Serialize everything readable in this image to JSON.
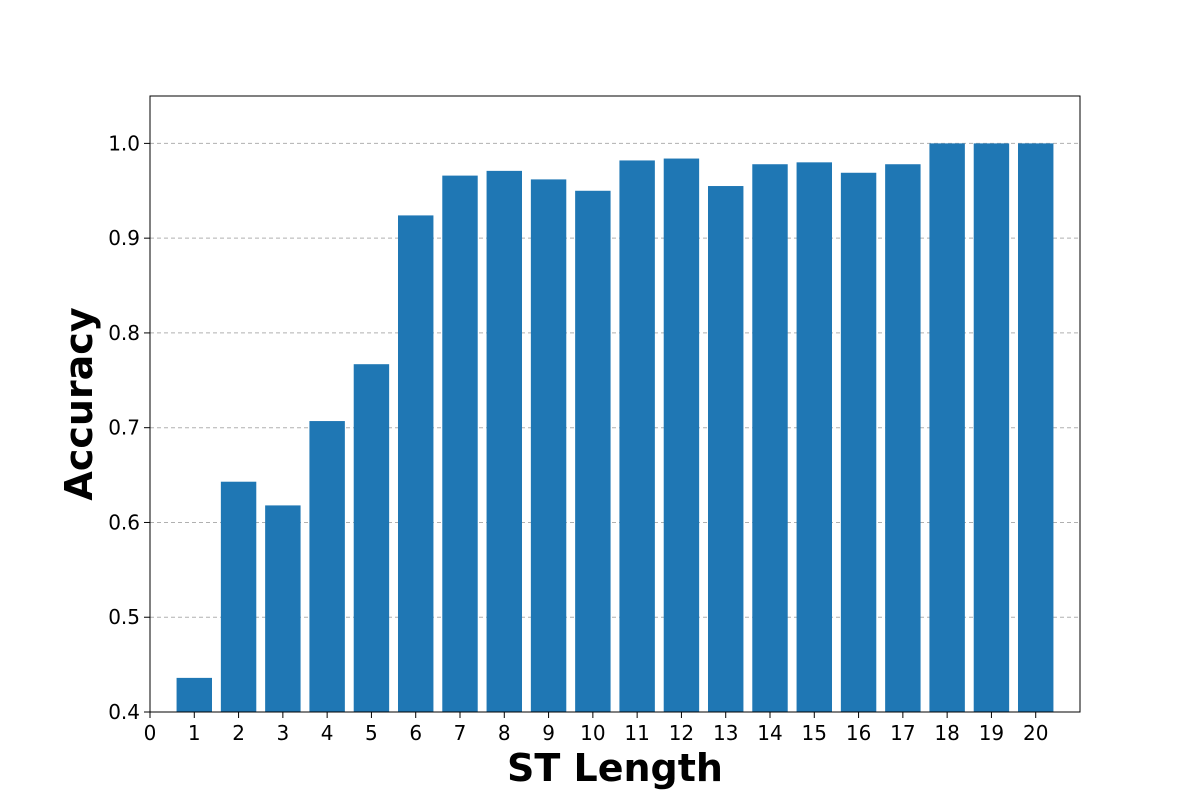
{
  "chart_data": {
    "type": "bar",
    "title": "",
    "xlabel": "ST Length",
    "ylabel": "Accuracy",
    "categories": [
      "1",
      "2",
      "3",
      "4",
      "5",
      "6",
      "7",
      "8",
      "9",
      "10",
      "11",
      "12",
      "13",
      "14",
      "15",
      "16",
      "17",
      "18",
      "19",
      "20"
    ],
    "x": [
      1,
      2,
      3,
      4,
      5,
      6,
      7,
      8,
      9,
      10,
      11,
      12,
      13,
      14,
      15,
      16,
      17,
      18,
      19,
      20
    ],
    "values": [
      0.436,
      0.643,
      0.618,
      0.707,
      0.767,
      0.924,
      0.966,
      0.971,
      0.962,
      0.95,
      0.982,
      0.984,
      0.955,
      0.978,
      0.98,
      0.969,
      0.978,
      1.0,
      1.0,
      1.0
    ],
    "xlim": [
      0,
      21
    ],
    "ylim": [
      0.4,
      1.05
    ],
    "xticks": [
      "0",
      "1",
      "2",
      "3",
      "4",
      "5",
      "6",
      "7",
      "8",
      "9",
      "10",
      "11",
      "12",
      "13",
      "14",
      "15",
      "16",
      "17",
      "18",
      "19",
      "20"
    ],
    "yticks": [
      "0.4",
      "0.5",
      "0.6",
      "0.7",
      "0.8",
      "0.9",
      "1.0"
    ],
    "grid": "y-dashed",
    "legend": "none",
    "bar_color": "#1f77b4",
    "grid_color": "#b0b0b0"
  }
}
